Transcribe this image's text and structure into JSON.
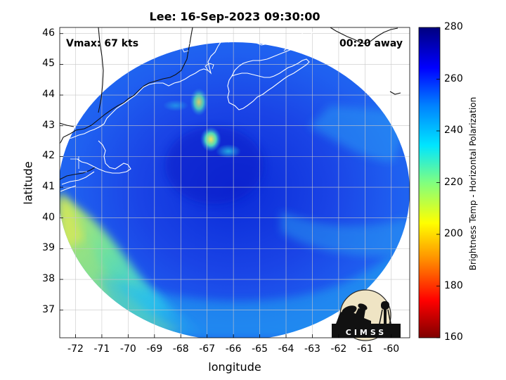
{
  "title": "Lee: 16-Sep-2023 09:30:00",
  "vmax_label": "Vmax: 67 kts",
  "time_label": "00:20 away",
  "xlabel": "longitude",
  "ylabel": "latitude",
  "logo_text": "CIMSS",
  "x_ticks": [
    "-72",
    "-71",
    "-70",
    "-69",
    "-68",
    "-67",
    "-66",
    "-65",
    "-64",
    "-63",
    "-62",
    "-61",
    "-60"
  ],
  "y_ticks": [
    "46",
    "45",
    "44",
    "43",
    "42",
    "41",
    "40",
    "39",
    "38",
    "37"
  ],
  "colorbar": {
    "label": "Brightness Temp - Horizontal Polarization",
    "ticks": [
      "280",
      "260",
      "240",
      "220",
      "200",
      "180",
      "160"
    ],
    "range": [
      160,
      280
    ],
    "colors": [
      "#7f0000",
      "#ff0000",
      "#ff8c00",
      "#ffff00",
      "#80ff80",
      "#00e5ff",
      "#0080ff",
      "#0000ff",
      "#00007f"
    ]
  },
  "map": {
    "lon_range": [
      -72.6,
      -59.3
    ],
    "lat_range": [
      36.1,
      46.2
    ],
    "eye_center": [
      -66.8,
      42.3
    ]
  }
}
